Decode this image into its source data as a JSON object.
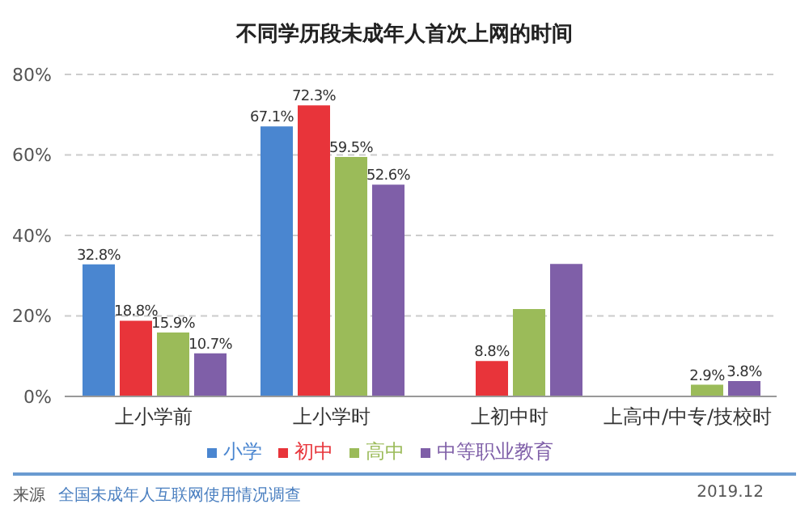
{
  "chart_data": {
    "type": "bar",
    "title": "不同学历段未成年人首次上网的时间",
    "categories": [
      "上小学前",
      "上小学时",
      "上初中时",
      "上高中/中专/技校时"
    ],
    "series": [
      {
        "name": "小学",
        "color": "#4a86d0",
        "values": [
          32.8,
          67.1,
          null,
          null
        ],
        "value_labels": [
          "32.8%",
          "67.1%",
          null,
          null
        ]
      },
      {
        "name": "初中",
        "color": "#e8343a",
        "values": [
          18.8,
          72.3,
          8.8,
          null
        ],
        "value_labels": [
          "18.8%",
          "72.3%",
          "8.8%",
          null
        ]
      },
      {
        "name": "高中",
        "color": "#9bbb59",
        "values": [
          15.9,
          59.5,
          21.7,
          2.9
        ],
        "value_labels": [
          "15.9%",
          "59.5%",
          null,
          "2.9%"
        ]
      },
      {
        "name": "中等职业教育",
        "color": "#7f5fa8",
        "values": [
          10.7,
          52.6,
          32.9,
          3.8
        ],
        "value_labels": [
          "10.7%",
          "52.6%",
          null,
          "3.8%"
        ]
      }
    ],
    "ylim": [
      0,
      80
    ],
    "yticks": [
      {
        "value": 0,
        "label": "0%"
      },
      {
        "value": 20,
        "label": "20%"
      },
      {
        "value": 40,
        "label": "40%"
      },
      {
        "value": 60,
        "label": "60%"
      },
      {
        "value": 80,
        "label": "80%"
      }
    ],
    "grid": "y",
    "legend": "bottom",
    "marker": "square",
    "annotations": [
      "来源",
      "全国未成年人互联网使用情况调查",
      "2019.12"
    ]
  }
}
